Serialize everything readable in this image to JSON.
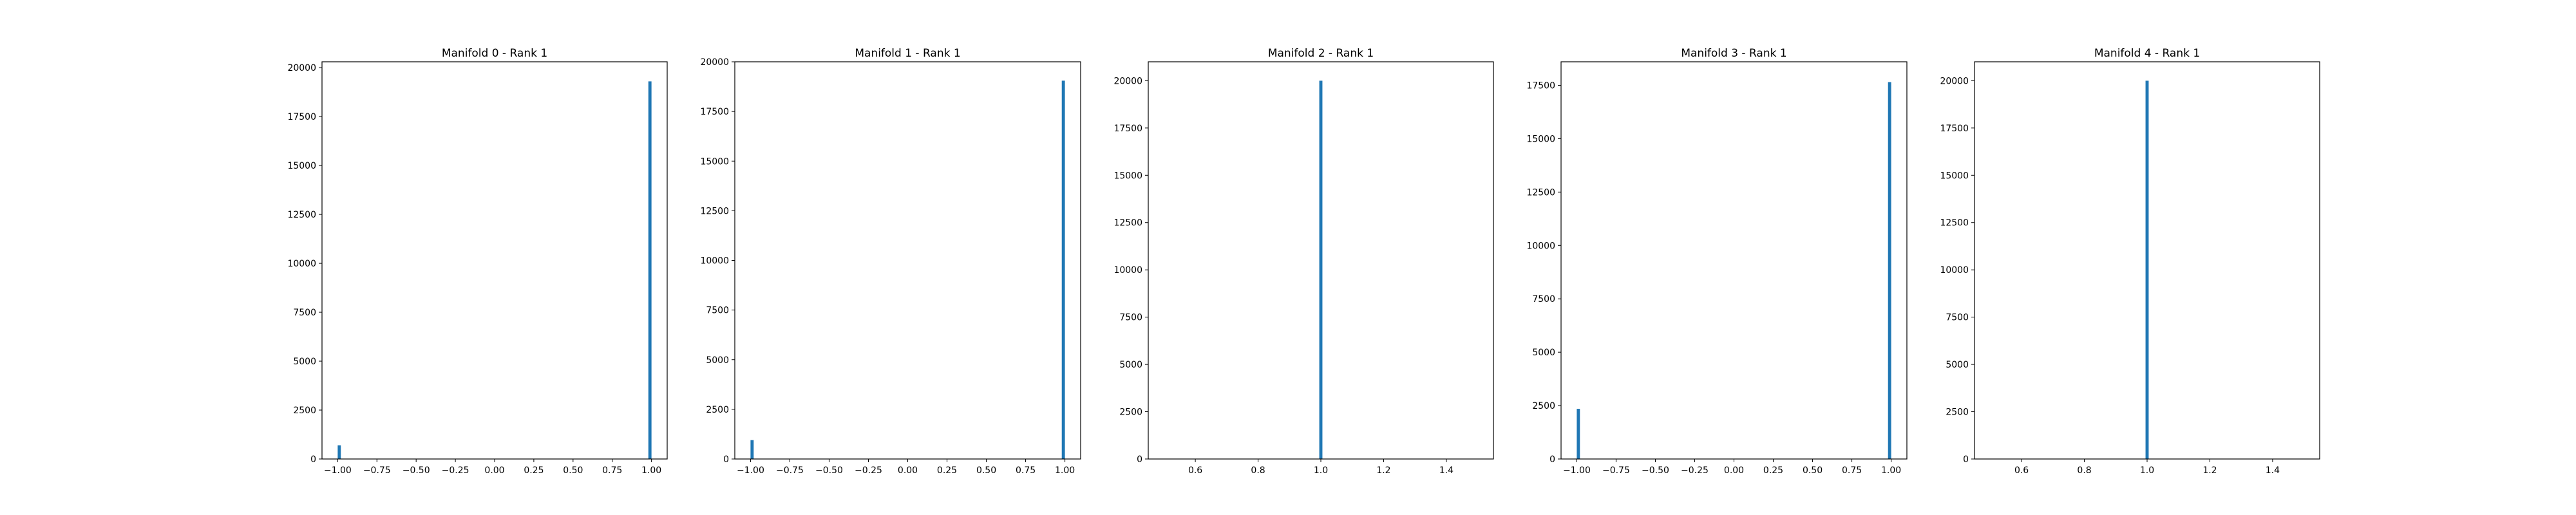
{
  "colors": {
    "bar": "#1f77b4",
    "axes": "#000000",
    "background": "#ffffff"
  },
  "chart_data": [
    {
      "type": "bar",
      "title": "Manifold 0 - Rank 1",
      "xlabel": "",
      "ylabel": "",
      "xlim": [
        -1.1,
        1.1
      ],
      "ylim": [
        0,
        20300
      ],
      "xticks": [
        -1.0,
        -0.75,
        -0.5,
        -0.25,
        0.0,
        0.25,
        0.5,
        0.75,
        1.0
      ],
      "xtick_labels": [
        "−1.00",
        "−0.75",
        "−0.50",
        "−0.25",
        "0.00",
        "0.25",
        "0.50",
        "0.75",
        "1.00"
      ],
      "yticks": [
        0,
        2500,
        5000,
        7500,
        10000,
        12500,
        15000,
        17500,
        20000
      ],
      "ytick_labels": [
        "0",
        "2500",
        "5000",
        "7500",
        "10000",
        "12500",
        "15000",
        "17500",
        "20000"
      ],
      "bin_width": 0.02,
      "bars": [
        {
          "x": -0.99,
          "value": 700
        },
        {
          "x": 0.99,
          "value": 19300
        }
      ],
      "grid": false,
      "legend": "none"
    },
    {
      "type": "bar",
      "title": "Manifold 1 - Rank 1",
      "xlabel": "",
      "ylabel": "",
      "xlim": [
        -1.1,
        1.1
      ],
      "ylim": [
        0,
        20000
      ],
      "xticks": [
        -1.0,
        -0.75,
        -0.5,
        -0.25,
        0.0,
        0.25,
        0.5,
        0.75,
        1.0
      ],
      "xtick_labels": [
        "−1.00",
        "−0.75",
        "−0.50",
        "−0.25",
        "0.00",
        "0.25",
        "0.50",
        "0.75",
        "1.00"
      ],
      "yticks": [
        0,
        2500,
        5000,
        7500,
        10000,
        12500,
        15000,
        17500,
        20000
      ],
      "ytick_labels": [
        "0",
        "2500",
        "5000",
        "7500",
        "10000",
        "12500",
        "15000",
        "17500",
        "20000"
      ],
      "bin_width": 0.02,
      "bars": [
        {
          "x": -0.99,
          "value": 950
        },
        {
          "x": 0.99,
          "value": 19050
        }
      ],
      "grid": false,
      "legend": "none"
    },
    {
      "type": "bar",
      "title": "Manifold 2 - Rank 1",
      "xlabel": "",
      "ylabel": "",
      "xlim": [
        0.45,
        1.55
      ],
      "ylim": [
        0,
        21000
      ],
      "xticks": [
        0.6,
        0.8,
        1.0,
        1.2,
        1.4
      ],
      "xtick_labels": [
        "0.6",
        "0.8",
        "1.0",
        "1.2",
        "1.4"
      ],
      "yticks": [
        0,
        2500,
        5000,
        7500,
        10000,
        12500,
        15000,
        17500,
        20000
      ],
      "ytick_labels": [
        "0",
        "2500",
        "5000",
        "7500",
        "10000",
        "12500",
        "15000",
        "17500",
        "20000"
      ],
      "bin_width": 0.01,
      "bars": [
        {
          "x": 1.0,
          "value": 20000
        }
      ],
      "grid": false,
      "legend": "none"
    },
    {
      "type": "bar",
      "title": "Manifold 3 - Rank 1",
      "xlabel": "",
      "ylabel": "",
      "xlim": [
        -1.1,
        1.1
      ],
      "ylim": [
        0,
        18600
      ],
      "xticks": [
        -1.0,
        -0.75,
        -0.5,
        -0.25,
        0.0,
        0.25,
        0.5,
        0.75,
        1.0
      ],
      "xtick_labels": [
        "−1.00",
        "−0.75",
        "−0.50",
        "−0.25",
        "0.00",
        "0.25",
        "0.50",
        "0.75",
        "1.00"
      ],
      "yticks": [
        0,
        2500,
        5000,
        7500,
        10000,
        12500,
        15000,
        17500
      ],
      "ytick_labels": [
        "0",
        "2500",
        "5000",
        "7500",
        "10000",
        "12500",
        "15000",
        "17500"
      ],
      "bin_width": 0.02,
      "bars": [
        {
          "x": -0.99,
          "value": 2350
        },
        {
          "x": 0.99,
          "value": 17650
        }
      ],
      "grid": false,
      "legend": "none"
    },
    {
      "type": "bar",
      "title": "Manifold 4 - Rank 1",
      "xlabel": "",
      "ylabel": "",
      "xlim": [
        0.45,
        1.55
      ],
      "ylim": [
        0,
        21000
      ],
      "xticks": [
        0.6,
        0.8,
        1.0,
        1.2,
        1.4
      ],
      "xtick_labels": [
        "0.6",
        "0.8",
        "1.0",
        "1.2",
        "1.4"
      ],
      "yticks": [
        0,
        2500,
        5000,
        7500,
        10000,
        12500,
        15000,
        17500,
        20000
      ],
      "ytick_labels": [
        "0",
        "2500",
        "5000",
        "7500",
        "10000",
        "12500",
        "15000",
        "17500",
        "20000"
      ],
      "bin_width": 0.01,
      "bars": [
        {
          "x": 1.0,
          "value": 20000
        }
      ],
      "grid": false,
      "legend": "none"
    }
  ]
}
